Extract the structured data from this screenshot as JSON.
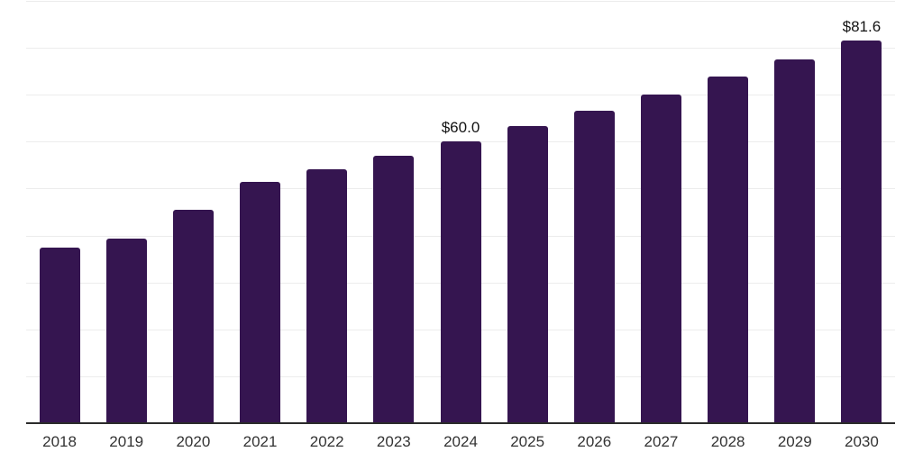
{
  "chart_data": {
    "type": "bar",
    "title": "",
    "xlabel": "",
    "ylabel": "",
    "categories": [
      "2018",
      "2019",
      "2020",
      "2021",
      "2022",
      "2023",
      "2024",
      "2025",
      "2026",
      "2027",
      "2028",
      "2029",
      "2030"
    ],
    "values": [
      37.4,
      39.4,
      45.4,
      51.5,
      54.2,
      57.0,
      60.0,
      63.4,
      66.6,
      70.0,
      73.8,
      77.6,
      81.6
    ],
    "annotations": [
      {
        "category": "2024",
        "label": "$60.0"
      },
      {
        "category": "2030",
        "label": "$81.6"
      }
    ],
    "ylim": [
      0,
      90
    ],
    "grid_step": 10,
    "grid": "on",
    "legend": "none",
    "y_tick_labels_visible": false
  },
  "colors": {
    "background": "#ffffff",
    "bar": "#351550",
    "grid": "#ececec",
    "axis": "#2b2b2b",
    "tick_label": "#333333",
    "value_label": "#141414"
  }
}
